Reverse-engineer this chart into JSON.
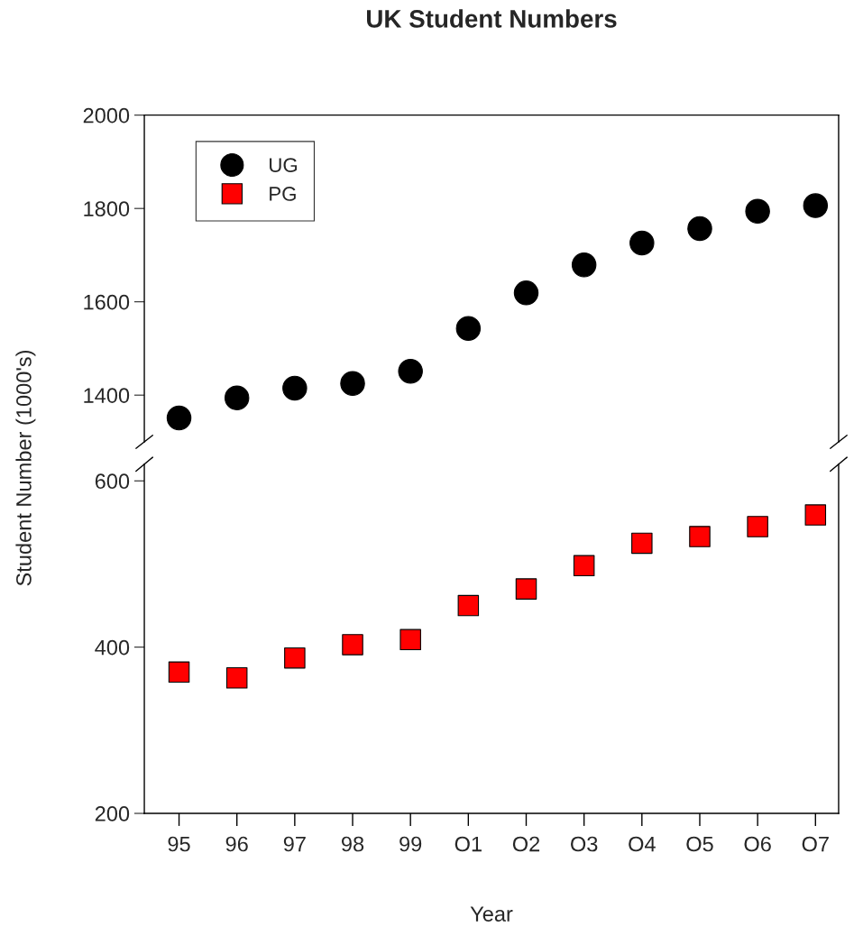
{
  "chart_data": [
    {
      "type": "scatter",
      "title": "UK Student Numbers",
      "ylabel": "Student Number (1000's)",
      "series": [
        {
          "name": "UG",
          "color": "#000000",
          "marker": "circle",
          "values": [
            1351,
            1394,
            1415,
            1425,
            1451,
            1543,
            1619,
            1679,
            1726,
            1757,
            1794,
            1806
          ]
        }
      ],
      "ylim": [
        1300,
        2000
      ],
      "yticks": [
        1400,
        1600,
        1800,
        2000
      ],
      "tick_labels": "y",
      "legend": "top left",
      "grid": false
    },
    {
      "type": "scatter",
      "xlabel": "Year",
      "categories": [
        "95",
        "96",
        "97",
        "98",
        "99",
        "O1",
        "O2",
        "O3",
        "O4",
        "O5",
        "O6",
        "O7"
      ],
      "series": [
        {
          "name": "PG",
          "color": "#ff0000",
          "marker": "square",
          "values": [
            370,
            363,
            387,
            403,
            409,
            450,
            470,
            498,
            525,
            533,
            545,
            559
          ]
        }
      ],
      "ylim": [
        200,
        620
      ],
      "yticks": [
        200,
        400,
        600
      ],
      "grid": false
    }
  ]
}
